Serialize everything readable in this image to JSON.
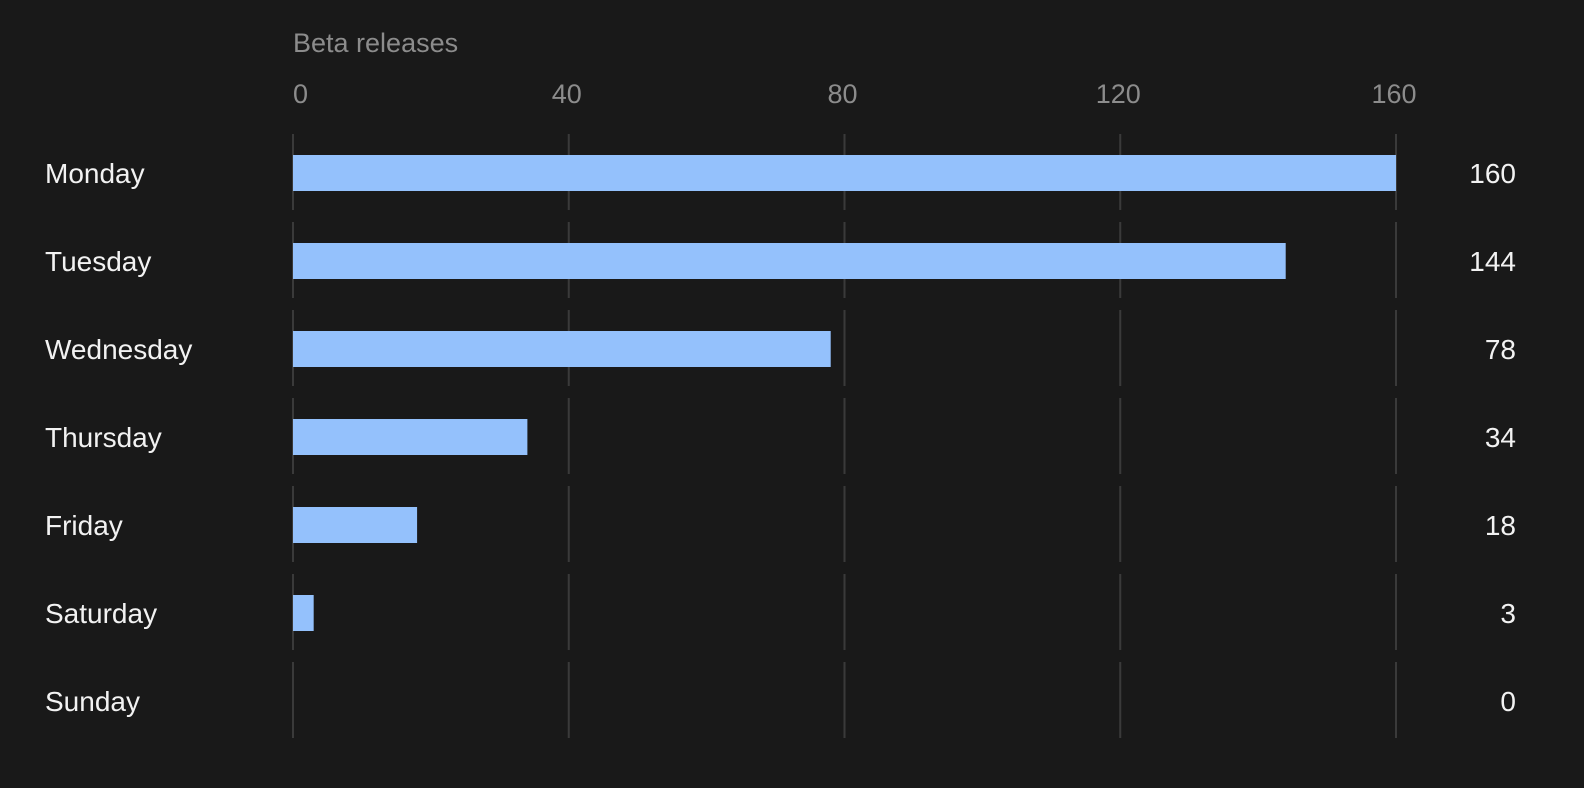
{
  "chart_data": {
    "type": "bar",
    "orientation": "horizontal",
    "title": "",
    "xlabel": "Beta releases",
    "ylabel": "",
    "categories": [
      "Monday",
      "Tuesday",
      "Wednesday",
      "Thursday",
      "Friday",
      "Saturday",
      "Sunday"
    ],
    "values": [
      160,
      144,
      78,
      34,
      18,
      3,
      0
    ],
    "value_labels": [
      "160",
      "144",
      "78",
      "34",
      "18",
      "3",
      "0"
    ],
    "xlim": [
      0,
      160
    ],
    "x_ticks": [
      0,
      40,
      80,
      120,
      160
    ],
    "x_tick_labels": [
      "0",
      "40",
      "80",
      "120",
      "160"
    ],
    "axis_position": "top",
    "grid": true,
    "legend": "none",
    "colors": {
      "background": "#191919",
      "bar": "#94c1fc",
      "grid": "#3a3a3a",
      "muted_text": "#8c8c8c",
      "text": "#f2f2f2"
    }
  }
}
